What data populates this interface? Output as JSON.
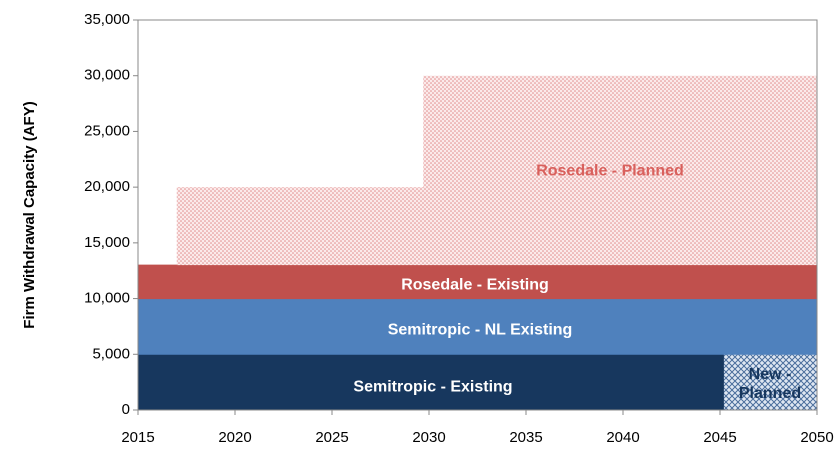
{
  "chart_data": {
    "type": "stacked_area",
    "y_label": "Firm Withdrawal Capacity (AFY)",
    "x": [
      2015,
      2017,
      2017,
      2029.7,
      2029.7,
      2045.2,
      2045.2,
      2050
    ],
    "xlim": [
      2015,
      2050
    ],
    "xticks": [
      2015,
      2020,
      2025,
      2030,
      2035,
      2040,
      2045,
      2050
    ],
    "ylim": [
      0,
      35000
    ],
    "yticks": [
      0,
      {
        "value": 5000,
        "label": "5,000"
      },
      {
        "value": 10000,
        "label": "10,000"
      },
      {
        "value": 15000,
        "label": "15,000"
      },
      {
        "value": 20000,
        "label": "20,000"
      },
      {
        "value": 25000,
        "label": "25,000"
      },
      {
        "value": 30000,
        "label": "30,000"
      },
      {
        "value": 35000,
        "label": "35,000"
      }
    ],
    "series": [
      {
        "name": "Semitropic - Existing",
        "color": "#17375e",
        "values": [
          5000,
          5000,
          5000,
          5000,
          5000,
          5000,
          0,
          0
        ]
      },
      {
        "name": "New - Planned",
        "color": "#8ea9cf",
        "pattern": "crosshatch",
        "values": [
          0,
          0,
          0,
          0,
          0,
          0,
          5000,
          5000
        ]
      },
      {
        "name": "Semitropic - NL Existing",
        "color": "#4f81bd",
        "values": [
          5000,
          5000,
          5000,
          5000,
          5000,
          5000,
          5000,
          5000
        ]
      },
      {
        "name": "Rosedale - Existing",
        "color": "#c0504d",
        "values": [
          3000,
          3000,
          3000,
          3000,
          3000,
          3000,
          3000,
          3000
        ]
      },
      {
        "name": "Rosedale - Planned",
        "color": "#e8a0a0",
        "pattern": "dots",
        "values": [
          0,
          0,
          7000,
          7000,
          17000,
          17000,
          17000,
          17000
        ]
      }
    ]
  }
}
